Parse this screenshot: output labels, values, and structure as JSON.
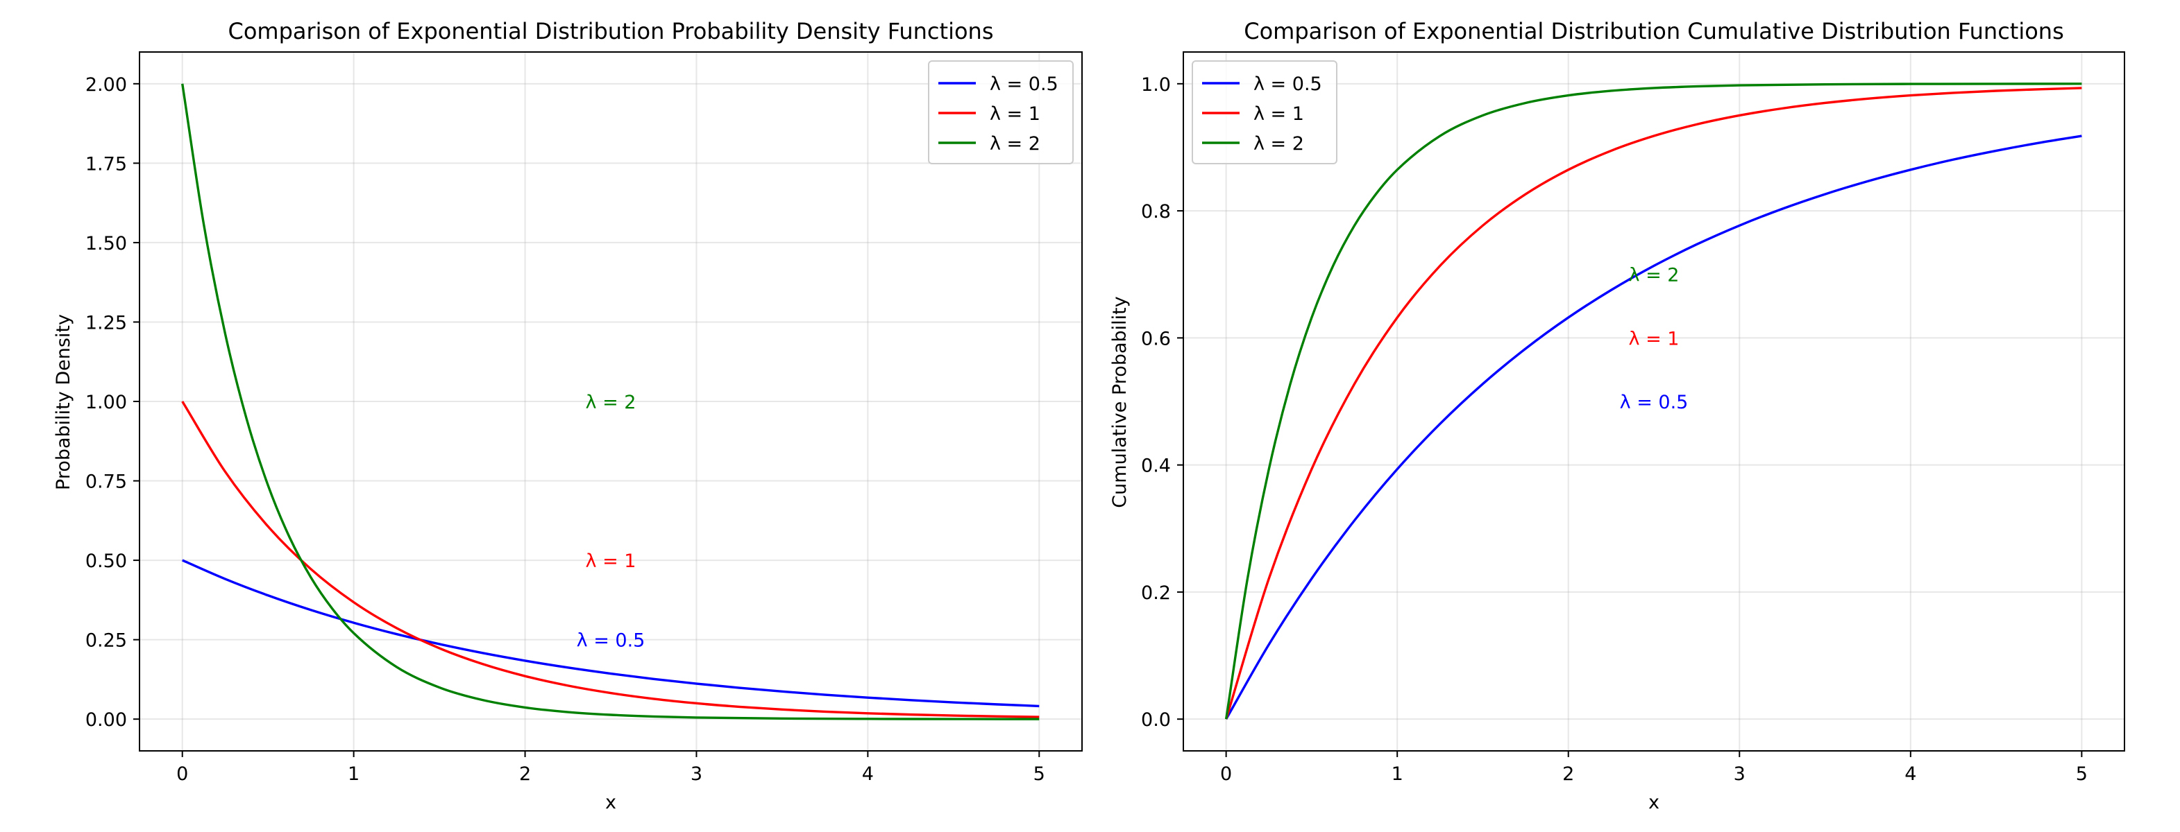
{
  "chart_data": [
    {
      "type": "line",
      "title": "Comparison of Exponential Distribution Probability Density Functions",
      "xlabel": "x",
      "ylabel": "Probability Density",
      "xlim": [
        -0.25,
        5.25
      ],
      "ylim": [
        -0.1,
        2.1
      ],
      "xticks": [
        "0",
        "1",
        "2",
        "3",
        "4",
        "5"
      ],
      "yticks": [
        "0.00",
        "0.25",
        "0.50",
        "0.75",
        "1.00",
        "1.25",
        "1.50",
        "1.75",
        "2.00"
      ],
      "grid": true,
      "legend_position": "top-right",
      "series": [
        {
          "name": "λ = 0.5",
          "color": "#0000ff",
          "x": [
            0,
            0.25,
            0.5,
            0.75,
            1,
            1.25,
            1.5,
            1.75,
            2,
            2.25,
            2.5,
            2.75,
            3,
            3.25,
            3.5,
            3.75,
            4,
            4.25,
            4.5,
            4.75,
            5
          ],
          "y": [
            0.5,
            0.4412,
            0.3894,
            0.3436,
            0.3033,
            0.2676,
            0.2362,
            0.2084,
            0.1839,
            0.1623,
            0.1433,
            0.1264,
            0.1116,
            0.0985,
            0.0869,
            0.0767,
            0.0677,
            0.0597,
            0.0527,
            0.0465,
            0.041
          ]
        },
        {
          "name": "λ = 1",
          "color": "#ff0000",
          "x": [
            0,
            0.25,
            0.5,
            0.75,
            1,
            1.25,
            1.5,
            1.75,
            2,
            2.25,
            2.5,
            2.75,
            3,
            3.25,
            3.5,
            3.75,
            4,
            4.25,
            4.5,
            4.75,
            5
          ],
          "y": [
            1,
            0.7788,
            0.6065,
            0.4724,
            0.3679,
            0.2865,
            0.2231,
            0.1738,
            0.1353,
            0.1054,
            0.0821,
            0.0639,
            0.0498,
            0.0388,
            0.0302,
            0.0235,
            0.0183,
            0.0143,
            0.0111,
            0.0087,
            0.0067
          ]
        },
        {
          "name": "λ = 2",
          "color": "#008000",
          "x": [
            0,
            0.125,
            0.25,
            0.375,
            0.5,
            0.625,
            0.75,
            0.875,
            1,
            1.25,
            1.5,
            1.75,
            2,
            2.25,
            2.5,
            2.75,
            3,
            3.5,
            4,
            4.5,
            5
          ],
          "y": [
            2,
            1.5576,
            1.2131,
            0.9447,
            0.7358,
            0.573,
            0.4463,
            0.3476,
            0.2707,
            0.1642,
            0.0996,
            0.0604,
            0.0366,
            0.0222,
            0.0135,
            0.0082,
            0.005,
            0.0018,
            0.0007,
            0.0002,
            0.0001
          ]
        }
      ],
      "annotations": [
        {
          "text": "λ = 2",
          "x": 2.5,
          "y": 1.0,
          "color": "#008000"
        },
        {
          "text": "λ = 1",
          "x": 2.5,
          "y": 0.5,
          "color": "#ff0000"
        },
        {
          "text": "λ = 0.5",
          "x": 2.5,
          "y": 0.25,
          "color": "#0000ff"
        }
      ]
    },
    {
      "type": "line",
      "title": "Comparison of Exponential Distribution Cumulative Distribution Functions",
      "xlabel": "x",
      "ylabel": "Cumulative Probability",
      "xlim": [
        -0.25,
        5.25
      ],
      "ylim": [
        -0.05,
        1.05
      ],
      "xticks": [
        "0",
        "1",
        "2",
        "3",
        "4",
        "5"
      ],
      "yticks": [
        "0.0",
        "0.2",
        "0.4",
        "0.6",
        "0.8",
        "1.0"
      ],
      "grid": true,
      "legend_position": "top-left",
      "series": [
        {
          "name": "λ = 0.5",
          "color": "#0000ff",
          "x": [
            0,
            0.25,
            0.5,
            0.75,
            1,
            1.25,
            1.5,
            1.75,
            2,
            2.25,
            2.5,
            2.75,
            3,
            3.25,
            3.5,
            3.75,
            4,
            4.25,
            4.5,
            4.75,
            5
          ],
          "y": [
            0,
            0.1175,
            0.2212,
            0.3127,
            0.3935,
            0.4647,
            0.5276,
            0.5831,
            0.6321,
            0.6753,
            0.7135,
            0.7472,
            0.7769,
            0.8031,
            0.8262,
            0.8466,
            0.8647,
            0.8807,
            0.8946,
            0.907,
            0.9179
          ]
        },
        {
          "name": "λ = 1",
          "color": "#ff0000",
          "x": [
            0,
            0.25,
            0.5,
            0.75,
            1,
            1.25,
            1.5,
            1.75,
            2,
            2.25,
            2.5,
            2.75,
            3,
            3.25,
            3.5,
            3.75,
            4,
            4.25,
            4.5,
            4.75,
            5
          ],
          "y": [
            0,
            0.2212,
            0.3935,
            0.5276,
            0.6321,
            0.7135,
            0.7769,
            0.8262,
            0.8647,
            0.8946,
            0.9179,
            0.9361,
            0.9502,
            0.9612,
            0.9698,
            0.9765,
            0.9817,
            0.9857,
            0.9889,
            0.9913,
            0.9933
          ]
        },
        {
          "name": "λ = 2",
          "color": "#008000",
          "x": [
            0,
            0.125,
            0.25,
            0.375,
            0.5,
            0.625,
            0.75,
            0.875,
            1,
            1.25,
            1.5,
            1.75,
            2,
            2.25,
            2.5,
            2.75,
            3,
            3.5,
            4,
            4.5,
            5
          ],
          "y": [
            0,
            0.2212,
            0.3935,
            0.5276,
            0.6321,
            0.7135,
            0.7769,
            0.8262,
            0.8647,
            0.9179,
            0.9502,
            0.9698,
            0.9817,
            0.9889,
            0.9933,
            0.9959,
            0.9975,
            0.9991,
            0.9997,
            0.9999,
            1.0
          ]
        }
      ],
      "annotations": [
        {
          "text": "λ = 2",
          "x": 2.5,
          "y": 0.7,
          "color": "#008000"
        },
        {
          "text": "λ = 1",
          "x": 2.5,
          "y": 0.6,
          "color": "#ff0000"
        },
        {
          "text": "λ = 0.5",
          "x": 2.5,
          "y": 0.5,
          "color": "#0000ff"
        }
      ]
    }
  ]
}
